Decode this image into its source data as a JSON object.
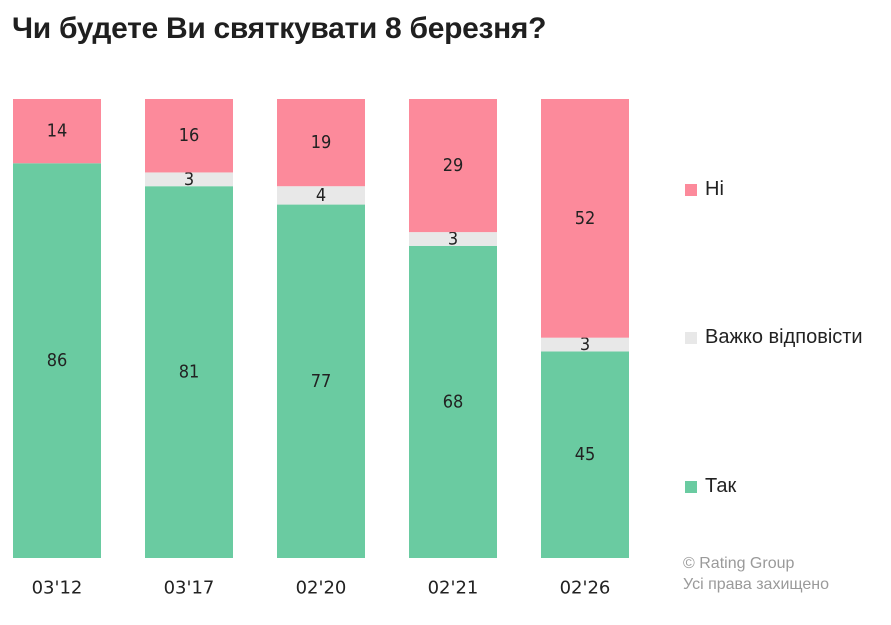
{
  "title": "Чи будете Ви святкувати 8 березня?",
  "colors": {
    "yes": "#6acba1",
    "hard": "#e8e8e8",
    "no": "#fc8a9b"
  },
  "chart_data": {
    "type": "bar",
    "stacked": true,
    "categories": [
      "03'12",
      "03'17",
      "02'20",
      "02'21",
      "02'26"
    ],
    "series": [
      {
        "name": "Так",
        "values": [
          86,
          81,
          77,
          68,
          45
        ]
      },
      {
        "name": "Важко відповісти",
        "values": [
          0,
          3,
          4,
          3,
          3
        ]
      },
      {
        "name": "Ні",
        "values": [
          14,
          16,
          19,
          29,
          52
        ]
      }
    ],
    "ylim": [
      0,
      100
    ],
    "grid": false,
    "legend_position": "right"
  },
  "legend": [
    {
      "label": "Ні",
      "color": "#fc8a9b"
    },
    {
      "label": "Важко відповісти",
      "color": "#e8e8e8"
    },
    {
      "label": "Так",
      "color": "#6acba1"
    }
  ],
  "copyright": {
    "line1": "© Rating Group",
    "line2": "Усі права захищено"
  }
}
